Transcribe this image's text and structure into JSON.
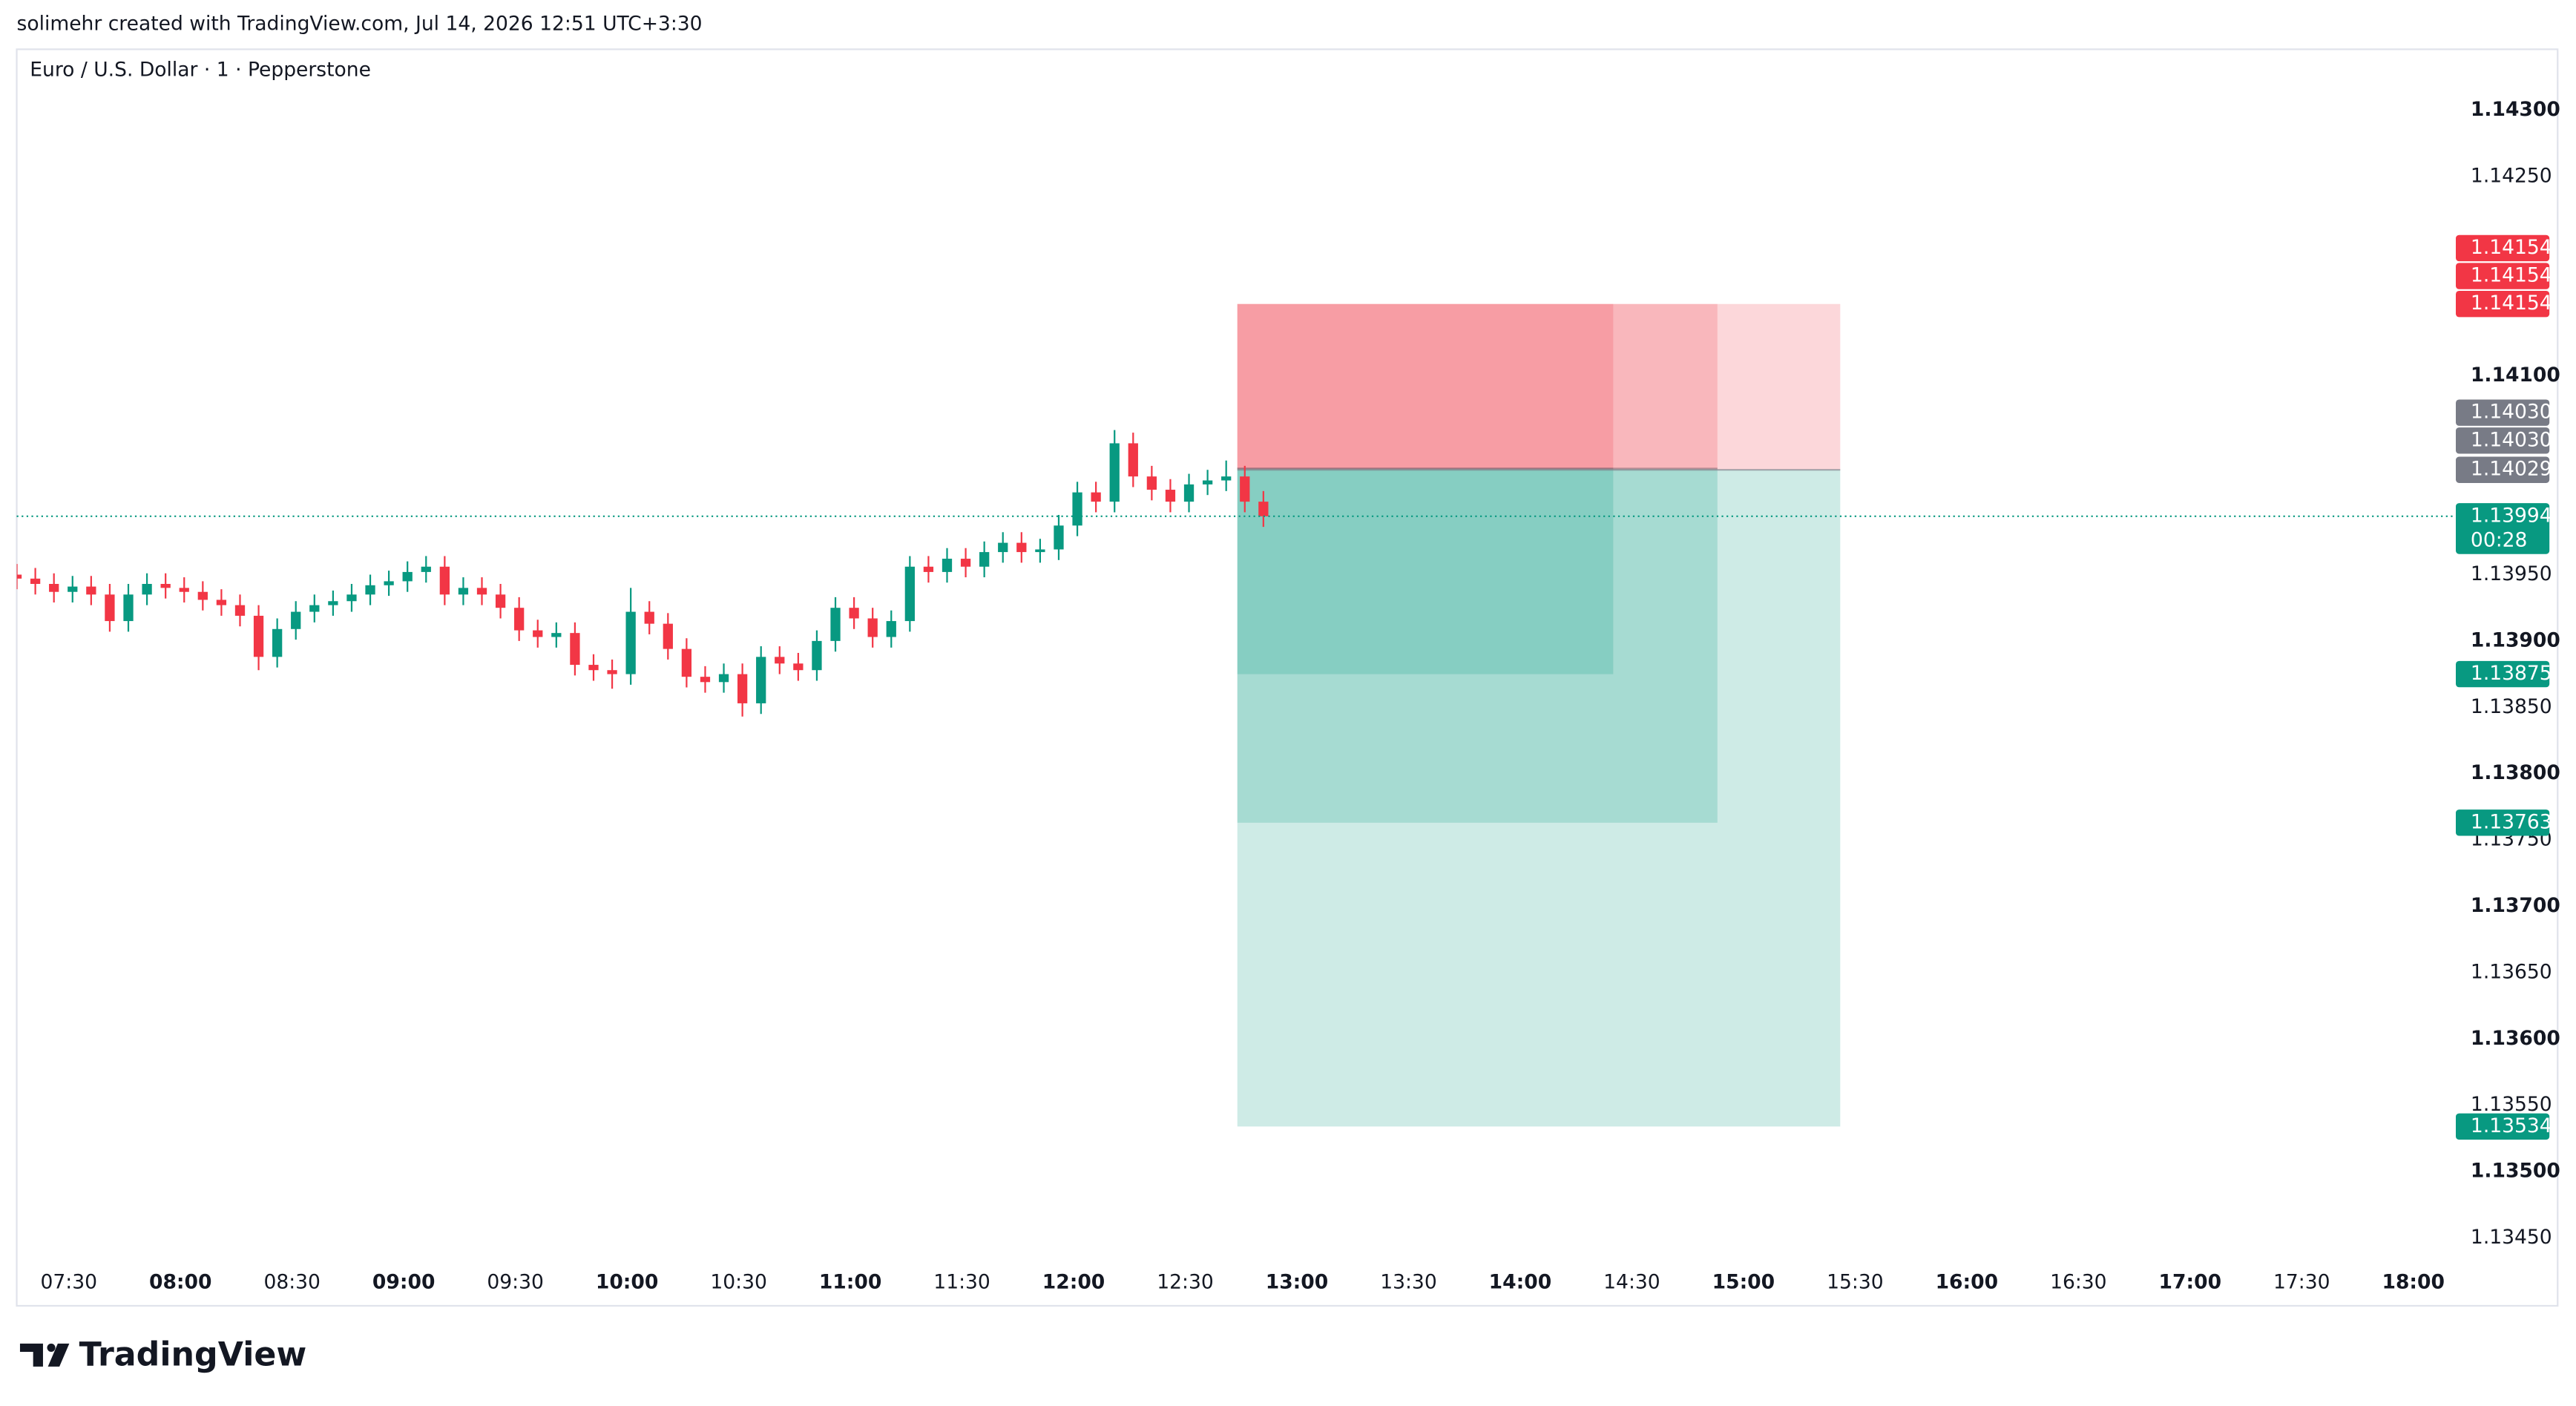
{
  "header": {
    "text": "solimehr created with TradingView.com, Jul 14, 2026 12:51 UTC+3:30"
  },
  "footer": {
    "logo": "TradingView"
  },
  "chart_data": {
    "type": "candlestick",
    "title": "Euro / U.S. Dollar · 1 · Pepperstone",
    "up_color": "#089981",
    "down_color": "#f23645",
    "x": [
      "07:16",
      "07:21",
      "07:26",
      "07:31",
      "07:36",
      "07:41",
      "07:46",
      "07:51",
      "07:56",
      "08:01",
      "08:06",
      "08:11",
      "08:16",
      "08:21",
      "08:26",
      "08:31",
      "08:36",
      "08:41",
      "08:46",
      "08:51",
      "08:56",
      "09:01",
      "09:06",
      "09:11",
      "09:16",
      "09:21",
      "09:26",
      "09:31",
      "09:36",
      "09:41",
      "09:46",
      "09:51",
      "09:56",
      "10:01",
      "10:06",
      "10:11",
      "10:16",
      "10:21",
      "10:26",
      "10:31",
      "10:36",
      "10:41",
      "10:46",
      "10:51",
      "10:56",
      "11:01",
      "11:06",
      "11:11",
      "11:16",
      "11:21",
      "11:26",
      "11:31",
      "11:36",
      "11:41",
      "11:46",
      "11:51",
      "11:56",
      "12:01",
      "12:06",
      "12:11",
      "12:16",
      "12:21",
      "12:26",
      "12:31",
      "12:36",
      "12:41",
      "12:46",
      "12:51"
    ],
    "open": [
      1.1395,
      1.13947,
      1.13943,
      1.13937,
      1.13941,
      1.13935,
      1.13915,
      1.13935,
      1.13943,
      1.1394,
      1.13937,
      1.13931,
      1.13927,
      1.13919,
      1.13888,
      1.13909,
      1.13922,
      1.13927,
      1.1393,
      1.13935,
      1.13942,
      1.13945,
      1.13952,
      1.13956,
      1.13935,
      1.1394,
      1.13935,
      1.13925,
      1.13908,
      1.13903,
      1.13906,
      1.13882,
      1.13878,
      1.13875,
      1.13922,
      1.13913,
      1.13894,
      1.13873,
      1.13869,
      1.13875,
      1.13853,
      1.13888,
      1.13883,
      1.13878,
      1.139,
      1.13925,
      1.13917,
      1.13903,
      1.13915,
      1.13956,
      1.13952,
      1.13962,
      1.13956,
      1.13967,
      1.13974,
      1.13967,
      1.13969,
      1.13987,
      1.14012,
      1.14005,
      1.14049,
      1.14024,
      1.14014,
      1.14005,
      1.14018,
      1.14021,
      1.14024,
      1.14005
    ],
    "high": [
      1.13958,
      1.13955,
      1.13951,
      1.13949,
      1.13949,
      1.13943,
      1.13943,
      1.13951,
      1.13951,
      1.13948,
      1.13945,
      1.13939,
      1.13935,
      1.13927,
      1.13917,
      1.1393,
      1.13935,
      1.13938,
      1.13943,
      1.1395,
      1.13953,
      1.1396,
      1.13964,
      1.13964,
      1.13948,
      1.13948,
      1.13943,
      1.13933,
      1.13916,
      1.13914,
      1.13914,
      1.1389,
      1.13886,
      1.1394,
      1.1393,
      1.13921,
      1.13902,
      1.13881,
      1.13883,
      1.13883,
      1.13896,
      1.13896,
      1.13891,
      1.13908,
      1.13933,
      1.13933,
      1.13925,
      1.13923,
      1.13964,
      1.13964,
      1.1397,
      1.1397,
      1.13975,
      1.13982,
      1.13982,
      1.13977,
      1.13995,
      1.1402,
      1.1402,
      1.14059,
      1.14057,
      1.14032,
      1.14022,
      1.14026,
      1.14029,
      1.14036,
      1.14032,
      1.14013
    ],
    "low": [
      1.13939,
      1.13935,
      1.13929,
      1.13929,
      1.13927,
      1.13907,
      1.13907,
      1.13927,
      1.13932,
      1.13929,
      1.13923,
      1.13919,
      1.13911,
      1.13878,
      1.1388,
      1.13901,
      1.13914,
      1.13919,
      1.13922,
      1.13927,
      1.13934,
      1.13937,
      1.13944,
      1.13927,
      1.13927,
      1.13927,
      1.13917,
      1.139,
      1.13895,
      1.13895,
      1.13874,
      1.1387,
      1.13864,
      1.13867,
      1.13905,
      1.13886,
      1.13865,
      1.13861,
      1.13861,
      1.13843,
      1.13845,
      1.13875,
      1.1387,
      1.1387,
      1.13892,
      1.13909,
      1.13895,
      1.13895,
      1.13907,
      1.13944,
      1.13944,
      1.13948,
      1.13948,
      1.13959,
      1.13959,
      1.13959,
      1.13961,
      1.13979,
      1.13997,
      1.13997,
      1.14016,
      1.14006,
      1.13997,
      1.13997,
      1.1401,
      1.14013,
      1.13997,
      1.13986
    ],
    "close": [
      1.13947,
      1.13943,
      1.13937,
      1.13941,
      1.13935,
      1.13915,
      1.13935,
      1.13943,
      1.1394,
      1.13937,
      1.13931,
      1.13927,
      1.13919,
      1.13888,
      1.13909,
      1.13922,
      1.13927,
      1.1393,
      1.13935,
      1.13942,
      1.13945,
      1.13952,
      1.13956,
      1.13935,
      1.1394,
      1.13935,
      1.13925,
      1.13908,
      1.13903,
      1.13906,
      1.13882,
      1.13878,
      1.13875,
      1.13922,
      1.13913,
      1.13894,
      1.13873,
      1.13869,
      1.13875,
      1.13853,
      1.13888,
      1.13883,
      1.13878,
      1.139,
      1.13925,
      1.13917,
      1.13903,
      1.13915,
      1.13956,
      1.13952,
      1.13962,
      1.13956,
      1.13967,
      1.13974,
      1.13967,
      1.13969,
      1.13987,
      1.14012,
      1.14005,
      1.14049,
      1.14024,
      1.14014,
      1.14005,
      1.14018,
      1.14021,
      1.14024,
      1.14005,
      1.13994
    ],
    "xlim": [
      "07:16",
      "18:07"
    ],
    "xticks": [
      "07:30",
      "08:00",
      "08:30",
      "09:00",
      "09:30",
      "10:00",
      "10:30",
      "11:00",
      "11:30",
      "12:00",
      "12:30",
      "13:00",
      "13:30",
      "14:00",
      "14:30",
      "15:00",
      "15:30",
      "16:00",
      "16:30",
      "17:00",
      "17:30",
      "18:00"
    ],
    "ylim": [
      1.13436,
      1.14346
    ],
    "yticks": [
      {
        "value": 1.143,
        "label": "1.14300"
      },
      {
        "value": 1.1425,
        "label": "1.14250"
      },
      {
        "value": 1.141,
        "label": "1.14100"
      },
      {
        "value": 1.1395,
        "label": "1.13950"
      },
      {
        "value": 1.139,
        "label": "1.13900"
      },
      {
        "value": 1.1385,
        "label": "1.13850"
      },
      {
        "value": 1.138,
        "label": "1.13800"
      },
      {
        "value": 1.1375,
        "label": "1.13750"
      },
      {
        "value": 1.137,
        "label": "1.13700"
      },
      {
        "value": 1.1365,
        "label": "1.13650"
      },
      {
        "value": 1.136,
        "label": "1.13600"
      },
      {
        "value": 1.1355,
        "label": "1.13550"
      },
      {
        "value": 1.135,
        "label": "1.13500"
      },
      {
        "value": 1.1345,
        "label": "1.13450"
      }
    ],
    "current_price": {
      "value": 1.13994,
      "label": "1.13994"
    },
    "countdown": "00:28",
    "positions": [
      {
        "start": "12:44",
        "end": "14:25",
        "entry": {
          "value": 1.1403,
          "label": "1.14030"
        },
        "stop": {
          "value": 1.14154,
          "label": "1.14154"
        },
        "target": {
          "value": 1.13875,
          "label": "1.13875"
        }
      },
      {
        "start": "12:44",
        "end": "14:53",
        "entry": {
          "value": 1.1403,
          "label": "1.14030"
        },
        "stop": {
          "value": 1.14154,
          "label": "1.14154"
        },
        "target": {
          "value": 1.13763,
          "label": "1.13763"
        }
      },
      {
        "start": "12:44",
        "end": "15:26",
        "entry": {
          "value": 1.14029,
          "label": "1.14029"
        },
        "stop": {
          "value": 1.14154,
          "label": "1.14154"
        },
        "target": {
          "value": 1.13534,
          "label": "1.13534"
        }
      }
    ]
  }
}
